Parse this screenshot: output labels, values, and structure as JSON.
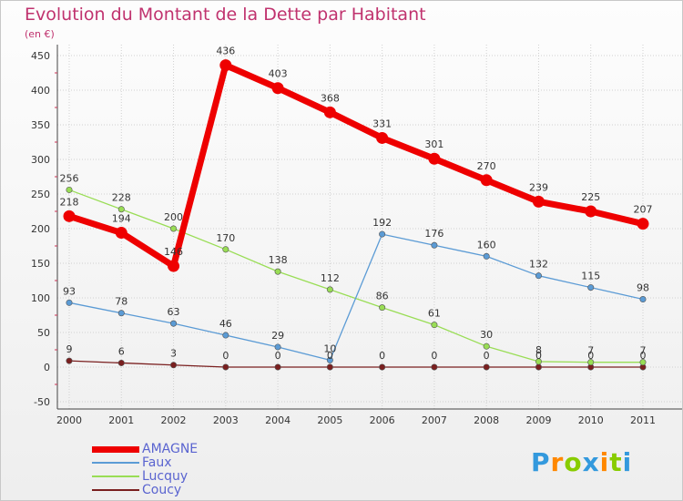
{
  "chart_data": {
    "type": "line",
    "title": "Evolution du Montant de la Dette par Habitant",
    "subtitle": "(en €)",
    "x": [
      "2000",
      "2001",
      "2002",
      "2003",
      "2004",
      "2005",
      "2006",
      "2007",
      "2008",
      "2009",
      "2010",
      "2011"
    ],
    "ylim": [
      -50,
      450
    ],
    "yticks": [
      -50,
      0,
      50,
      100,
      150,
      200,
      250,
      300,
      350,
      400,
      450
    ],
    "grid": true,
    "legend": "bottom-left",
    "series": [
      {
        "name": "AMAGNE",
        "color": "#ee0000",
        "values": [
          218,
          194,
          146,
          436,
          403,
          368,
          331,
          301,
          270,
          239,
          225,
          207
        ],
        "labels": [
          "218",
          "194",
          "146",
          "436",
          "403",
          "368",
          "331",
          "301",
          "270",
          "239",
          "225",
          "207"
        ]
      },
      {
        "name": "Faux",
        "color": "#5b9bd5",
        "values": [
          93,
          78,
          63,
          46,
          29,
          10,
          192,
          176,
          160,
          132,
          115,
          98
        ],
        "labels": [
          "93",
          "78",
          "63",
          "46",
          "29",
          "10",
          "192",
          "176",
          "160",
          "132",
          "115",
          "98"
        ]
      },
      {
        "name": "Lucquy",
        "color": "#99dd55",
        "values": [
          256,
          228,
          200,
          170,
          138,
          112,
          86,
          61,
          30,
          8,
          7,
          7
        ],
        "labels": [
          "256",
          "228",
          "200",
          "170",
          "138",
          "112",
          "86",
          "61",
          "30",
          "8",
          "7",
          "7"
        ]
      },
      {
        "name": "Coucy",
        "color": "#7a1f1f",
        "values": [
          9,
          6,
          3,
          0,
          0,
          0,
          0,
          0,
          0,
          0,
          0,
          0
        ],
        "labels": [
          "9",
          "6",
          "3",
          "0",
          "0",
          "0",
          "0",
          "0",
          "0",
          "0",
          "0",
          "0"
        ]
      }
    ]
  },
  "logo": {
    "letters": [
      "P",
      "r",
      "o",
      "x",
      "i",
      "t",
      "i"
    ],
    "colors": [
      "#3399dd",
      "#ff8800",
      "#88cc00",
      "#3399dd",
      "#ff8800",
      "#88cc00",
      "#3399dd"
    ]
  }
}
